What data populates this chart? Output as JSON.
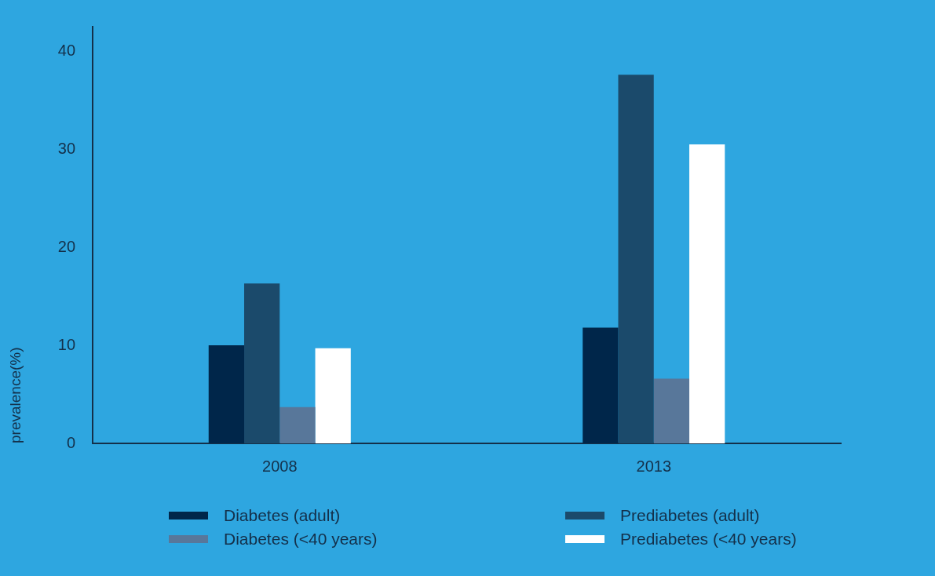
{
  "chart_data": {
    "type": "bar",
    "ylabel": "prevalence(%)",
    "categories": [
      "2008",
      "2013"
    ],
    "series": [
      {
        "name": "Diabetes (adult)",
        "color": "#00264a",
        "values": [
          10.0,
          11.8
        ]
      },
      {
        "name": "Prediabetes (adult)",
        "color": "#1b4a6b",
        "values": [
          16.3,
          37.6
        ]
      },
      {
        "name": "Diabetes (<40 years)",
        "color": "#58779a",
        "values": [
          3.7,
          6.6
        ]
      },
      {
        "name": "Prediabetes (<40 years)",
        "color": "#ffffff",
        "values": [
          9.7,
          30.5
        ]
      }
    ],
    "ylim": [
      0,
      42.5
    ],
    "yticks": [
      0,
      10,
      20,
      30,
      40
    ],
    "grid": false,
    "legend": "bottom"
  }
}
